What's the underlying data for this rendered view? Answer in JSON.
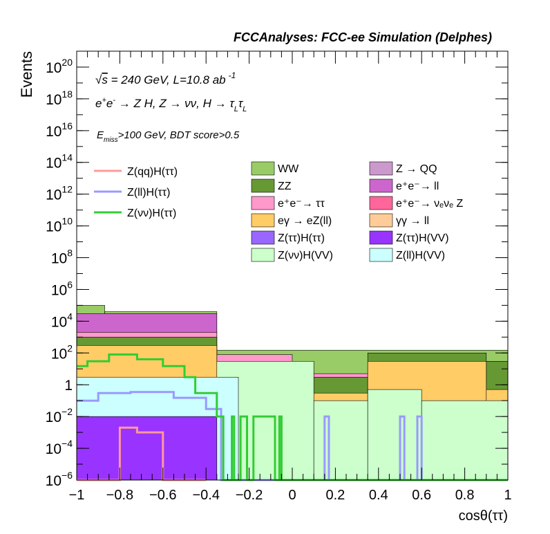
{
  "chart_data": {
    "type": "area",
    "title": "FCCAnalyses: FCC-ee Simulation (Delphes)",
    "xlabel": "cosθ(ττ)",
    "ylabel": "Events",
    "xlim": [
      -1,
      1
    ],
    "ylim": [
      1e-06,
      1e+21
    ],
    "log_y": true,
    "x_ticks": [
      -1,
      -0.8,
      -0.6,
      -0.4,
      -0.2,
      0,
      0.2,
      0.4,
      0.6,
      0.8,
      1
    ],
    "x_tick_labels": [
      "−1",
      "−0.8",
      "−0.6",
      "−0.4",
      "−0.2",
      "0",
      "0.2",
      "0.4",
      "0.6",
      "0.8",
      "1"
    ],
    "y_ticks": [
      {
        "base": "10",
        "exp": "−6",
        "value": 1e-06
      },
      {
        "base": "10",
        "exp": "−4",
        "value": 0.0001
      },
      {
        "base": "10",
        "exp": "−2",
        "value": 0.01
      },
      {
        "base": "1",
        "exp": "",
        "value": 1
      },
      {
        "base": "10",
        "exp": "2",
        "value": 100.0
      },
      {
        "base": "10",
        "exp": "4",
        "value": 10000.0
      },
      {
        "base": "10",
        "exp": "6",
        "value": 1000000.0
      },
      {
        "base": "10",
        "exp": "8",
        "value": 100000000.0
      },
      {
        "base": "10",
        "exp": "10",
        "value": 10000000000.0
      },
      {
        "base": "10",
        "exp": "12",
        "value": 1000000000000.0
      },
      {
        "base": "10",
        "exp": "14",
        "value": 100000000000000.0
      },
      {
        "base": "10",
        "exp": "16",
        "value": 1e+16
      },
      {
        "base": "10",
        "exp": "18",
        "value": 1e+18
      },
      {
        "base": "10",
        "exp": "20",
        "value": 1e+20
      }
    ],
    "annotations": {
      "energy": {
        "sqrt": "√",
        "s": "s",
        "rest": " = 240 GeV, L=10.8 ab",
        "sup": "-1"
      },
      "process": {
        "a": "e",
        "sup1": "+",
        "b": "e",
        "sup2": "-",
        "c": " → Z H, Z  → νν, H  → τ",
        "sub1": "L",
        "d": "τ",
        "sub2": "L"
      },
      "cuts": {
        "e": "E",
        "sub": "miss",
        "rest": ">100 GeV, BDT score>0.5"
      }
    },
    "legend_placement": "top",
    "signal_legend": [
      {
        "name": "Z(qq)H(ττ)",
        "color": "#ff9999"
      },
      {
        "name": "Z(ll)H(ττ)",
        "color": "#9999ff"
      },
      {
        "name": "Z(νν)H(ττ)",
        "color": "#33cc33"
      }
    ],
    "background_legend": [
      {
        "name": "WW",
        "color": "#99cc66"
      },
      {
        "name": "Z → QQ",
        "color": "#cc99cc"
      },
      {
        "name": "ZZ",
        "color": "#669933"
      },
      {
        "name": "e⁺e⁻→ ll",
        "color": "#cc66cc"
      },
      {
        "name": "e⁺e⁻→ ττ",
        "color": "#ff99cc"
      },
      {
        "name": "e⁺e⁻→ νₑνₑ Z",
        "color": "#ff6699"
      },
      {
        "name": "eγ → eZ(ll)",
        "color": "#ffcc66"
      },
      {
        "name": "γγ → ll",
        "color": "#ffcc99"
      },
      {
        "name": "Z(ττ)H(ττ)",
        "color": "#9966ff"
      },
      {
        "name": "Z(ττ)H(VV)",
        "color": "#9933ff"
      },
      {
        "name": "Z(νν)H(VV)",
        "color": "#ccffcc"
      },
      {
        "name": "Z(ll)H(VV)",
        "color": "#ccffff"
      }
    ],
    "stack_colors": {
      "WW": "#99cc66",
      "ZZ": "#669933",
      "ee_tautau": "#ff99cc",
      "ee_ll": "#cc66cc",
      "Z_QQ": "#cc99cc",
      "ee_nunuZ": "#ff6699",
      "egamma": "#ffcc66",
      "gammagamma": "#ffcc99",
      "ZtautauHtautau": "#9966ff",
      "ZtautauHVV": "#9933ff",
      "ZnunuHVV": "#ccffcc",
      "ZllHVV": "#ccffff"
    },
    "series_segments": {
      "ZtautauHVV_fill": [
        [
          -1,
          -0.35,
          0.01
        ]
      ],
      "ZllHVV": [
        [
          -1,
          -0.25,
          3
        ]
      ],
      "ZnunuHVV": [
        [
          -0.35,
          0.1,
          30
        ],
        [
          0.1,
          0.35,
          0.1
        ],
        [
          0.35,
          0.6,
          0.5
        ],
        [
          0.6,
          1,
          0.1
        ]
      ],
      "egamma": [
        [
          -1,
          -0.35,
          300
        ],
        [
          -0.35,
          -0.2,
          3
        ],
        [
          -0.2,
          0.35,
          0.3
        ],
        [
          0.35,
          0.9,
          30
        ],
        [
          0.9,
          1,
          0.5
        ]
      ],
      "ZZ": [
        [
          -1,
          -0.35,
          1000
        ],
        [
          -0.35,
          -0.15,
          20
        ],
        [
          -0.15,
          0.35,
          3
        ],
        [
          0.35,
          0.9,
          100
        ],
        [
          0.9,
          1,
          30
        ]
      ],
      "ee_tautau": [
        [
          -1,
          -0.35,
          2000
        ],
        [
          -0.35,
          0,
          80
        ],
        [
          0,
          0.9,
          5
        ],
        [
          0.9,
          1,
          30
        ]
      ],
      "ee_ll": [
        [
          -1,
          -0.35,
          30000
        ]
      ],
      "WW": [
        [
          -1,
          -0.87,
          100000
        ],
        [
          -0.87,
          -0.35,
          40000
        ],
        [
          -0.35,
          1,
          150
        ]
      ]
    },
    "signal_curves": {
      "Zqq": [
        [
          -1,
          -0.8,
          1e-06
        ],
        [
          -0.8,
          -0.72,
          0.002
        ],
        [
          -0.72,
          -0.6,
          0.001
        ],
        [
          -0.6,
          -0.4,
          1e-06
        ]
      ],
      "Zll": [
        [
          -1,
          -0.9,
          0.1
        ],
        [
          -0.9,
          -0.75,
          0.3
        ],
        [
          -0.75,
          -0.55,
          0.35
        ],
        [
          -0.55,
          -0.4,
          0.15
        ],
        [
          -0.4,
          -0.33,
          0.03
        ],
        [
          -0.33,
          0.15,
          1e-06
        ],
        [
          0.15,
          0.17,
          0.01
        ],
        [
          0.17,
          0.5,
          1e-06
        ],
        [
          0.5,
          0.52,
          0.01
        ],
        [
          0.52,
          0.58,
          1e-06
        ],
        [
          0.58,
          0.6,
          0.01
        ],
        [
          0.6,
          1,
          1e-06
        ]
      ],
      "Znunu": [
        [
          -1,
          -0.95,
          15
        ],
        [
          -0.95,
          -0.85,
          30
        ],
        [
          -0.85,
          -0.72,
          80
        ],
        [
          -0.72,
          -0.6,
          40
        ],
        [
          -0.6,
          -0.5,
          15
        ],
        [
          -0.5,
          -0.45,
          3
        ],
        [
          -0.45,
          -0.35,
          0.3
        ],
        [
          -0.35,
          -0.32,
          0.01
        ],
        [
          -0.32,
          -0.28,
          1e-06
        ],
        [
          -0.28,
          -0.27,
          0.01
        ],
        [
          -0.27,
          -0.24,
          1e-06
        ],
        [
          -0.24,
          -0.21,
          0.01
        ],
        [
          -0.21,
          -0.18,
          1e-06
        ],
        [
          -0.18,
          -0.14,
          0.01
        ],
        [
          -0.14,
          -0.08,
          0.01
        ],
        [
          -0.08,
          -0.06,
          1e-06
        ],
        [
          -0.06,
          -0.05,
          0.01
        ],
        [
          -0.05,
          1,
          1e-06
        ]
      ]
    }
  }
}
